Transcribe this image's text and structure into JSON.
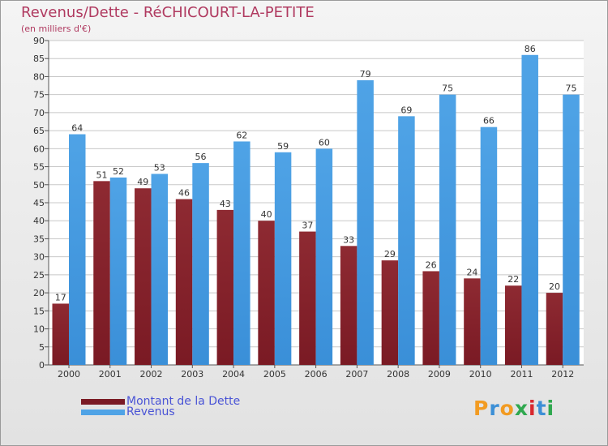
{
  "chart_data": {
    "type": "bar",
    "title": "Revenus/Dette - RéCHICOURT-LA-PETITE",
    "subtitle": "(en milliers d'€)",
    "categories": [
      "2000",
      "2001",
      "2002",
      "2003",
      "2004",
      "2005",
      "2006",
      "2007",
      "2008",
      "2009",
      "2010",
      "2011",
      "2012"
    ],
    "series": [
      {
        "name": "Montant de la Dette",
        "values": [
          17,
          51,
          49,
          46,
          43,
          40,
          37,
          33,
          29,
          26,
          24,
          22,
          20
        ]
      },
      {
        "name": "Revenus",
        "values": [
          64,
          52,
          53,
          56,
          62,
          59,
          60,
          79,
          69,
          75,
          66,
          86,
          75
        ]
      }
    ],
    "ylim": [
      0,
      90
    ],
    "ytick_step": 5,
    "grid": true,
    "legend_position": "bottom-left"
  },
  "colors": {
    "debt": "#7a1a24",
    "debt_light": "#8e2a32",
    "revenue": "#4fa3e6",
    "revenue_dark": "#3a8fd8",
    "title": "#b03a60",
    "legend_text": "#4a54d6"
  },
  "logo": {
    "letters": [
      "P",
      "r",
      "o",
      "x",
      "i",
      "t",
      "i"
    ],
    "colors": [
      "#f29b22",
      "#3c8fd6",
      "#f29b22",
      "#2fa84f",
      "#d8282f",
      "#3c8fd6",
      "#2fa84f"
    ]
  }
}
